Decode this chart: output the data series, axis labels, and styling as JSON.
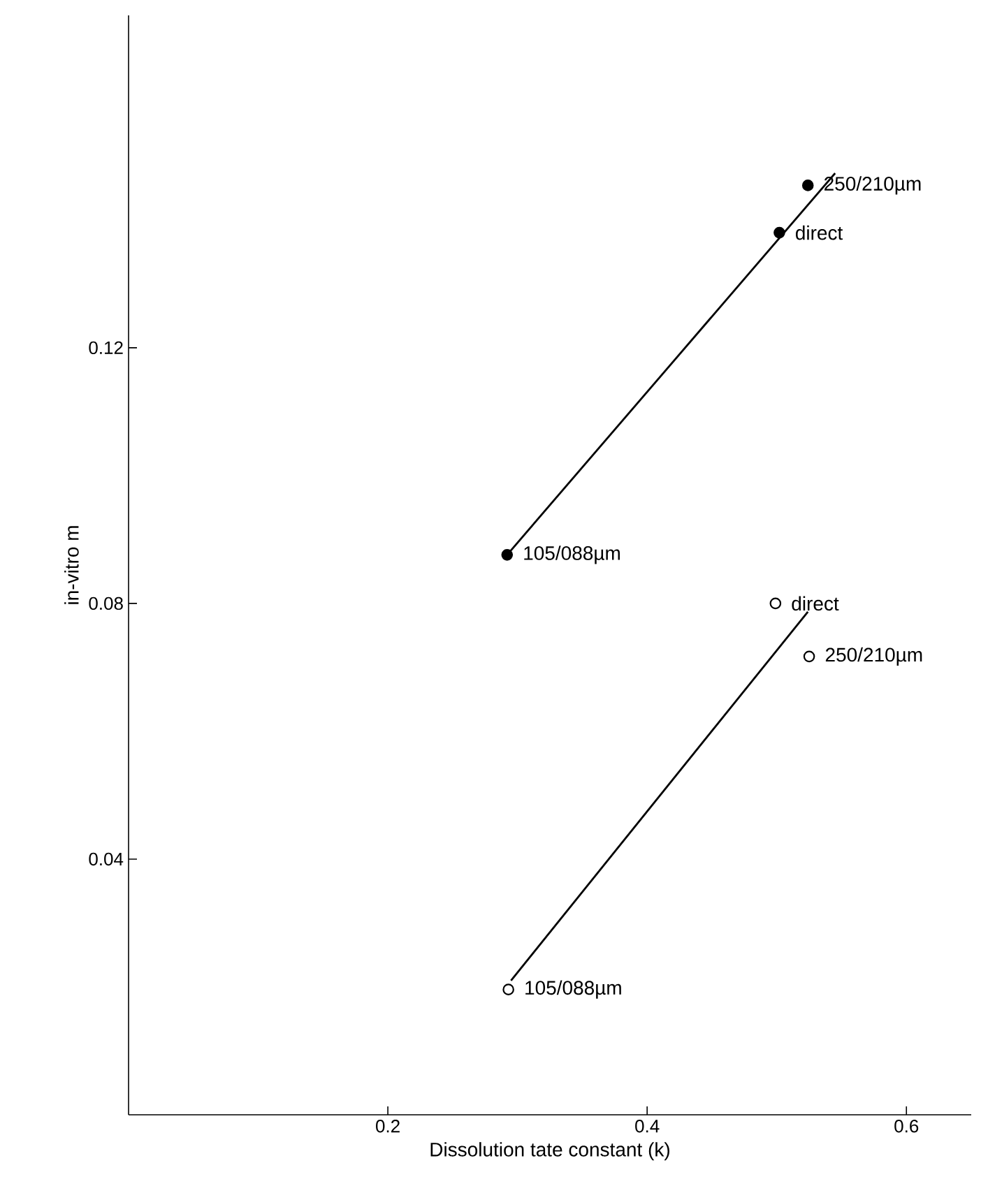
{
  "chart_data": {
    "type": "scatter",
    "xlabel": "Dissolution tate constant (k)",
    "ylabel": "in-vitro m",
    "xlim": [
      0,
      0.65
    ],
    "ylim": [
      0,
      0.172
    ],
    "xticks": [
      0.2,
      0.4,
      0.6
    ],
    "yticks": [
      0.04,
      0.08,
      0.12
    ],
    "grid": false,
    "series": [
      {
        "marker": "circle",
        "color": "#000000",
        "x": [
          0.292,
          0.502,
          0.524
        ],
        "values": [
          0.0876,
          0.138,
          0.1454
        ]
      },
      {
        "type": "line",
        "marker": "none",
        "color": "#000000",
        "x": [
          0.292,
          0.545
        ],
        "values": [
          0.0876,
          0.1473
        ]
      },
      {
        "marker": "circle",
        "x": [
          0.293,
          0.499,
          0.525
        ],
        "values": [
          0.0196,
          0.08,
          0.0717
        ]
      },
      {
        "type": "line",
        "marker": "none",
        "color": "#000000",
        "x": [
          0.295,
          0.524
        ],
        "values": [
          0.021,
          0.0787
        ]
      }
    ],
    "annotations": [
      {
        "text": "250/210µm",
        "x": 0.524,
        "y": 0.1454
      },
      {
        "text": "direct",
        "x": 0.502,
        "y": 0.138
      },
      {
        "text": "105/088µm",
        "x": 0.292,
        "y": 0.0876
      },
      {
        "text": "direct",
        "x": 0.499,
        "y": 0.08
      },
      {
        "text": "250/210µm",
        "x": 0.525,
        "y": 0.0717
      },
      {
        "text": "105/088µm",
        "x": 0.293,
        "y": 0.0196
      }
    ]
  }
}
